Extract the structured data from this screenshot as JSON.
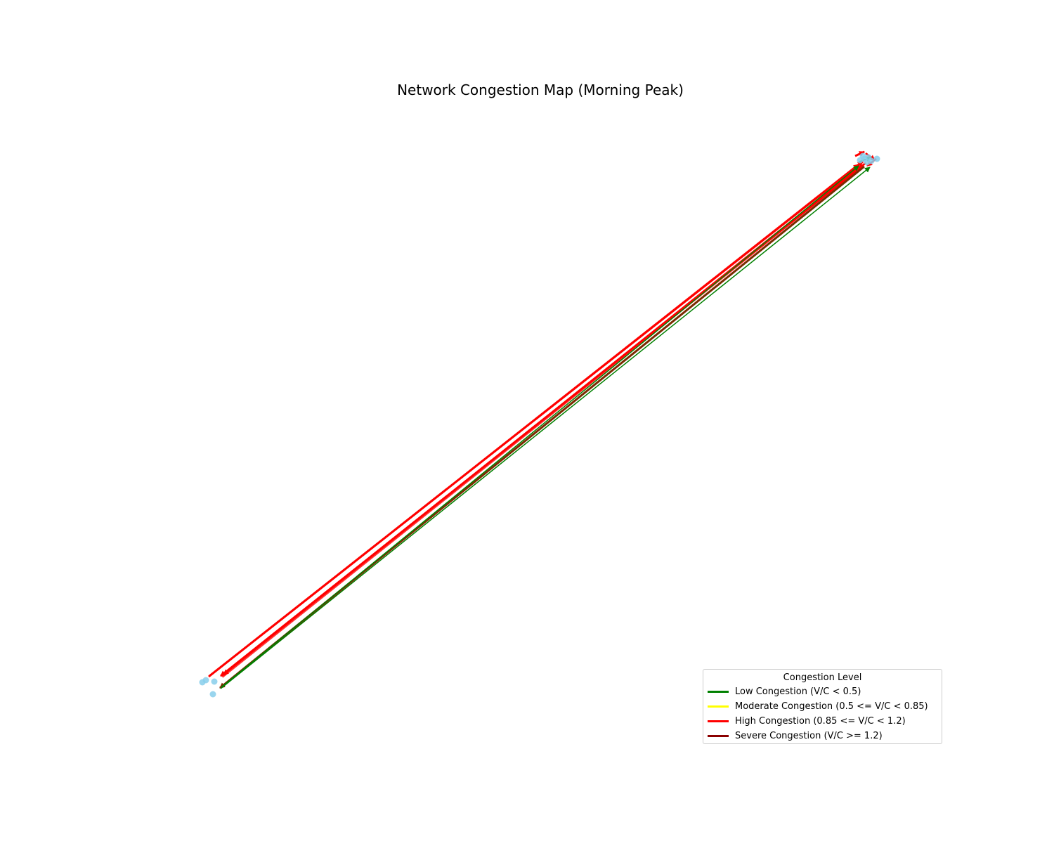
{
  "title": "Network Congestion Map (Morning Peak)",
  "legend": {
    "title": "Congestion Level",
    "items": [
      {
        "label": "Low Congestion (V/C < 0.5)",
        "color": "#008000"
      },
      {
        "label": "Moderate Congestion (0.5 <= V/C < 0.85)",
        "color": "#ffff00"
      },
      {
        "label": "High Congestion (0.85 <= V/C < 1.2)",
        "color": "#ff0000"
      },
      {
        "label": "Severe Congestion (V/C >= 1.2)",
        "color": "#8b0000"
      }
    ]
  },
  "node_color": "#87ceeb"
}
